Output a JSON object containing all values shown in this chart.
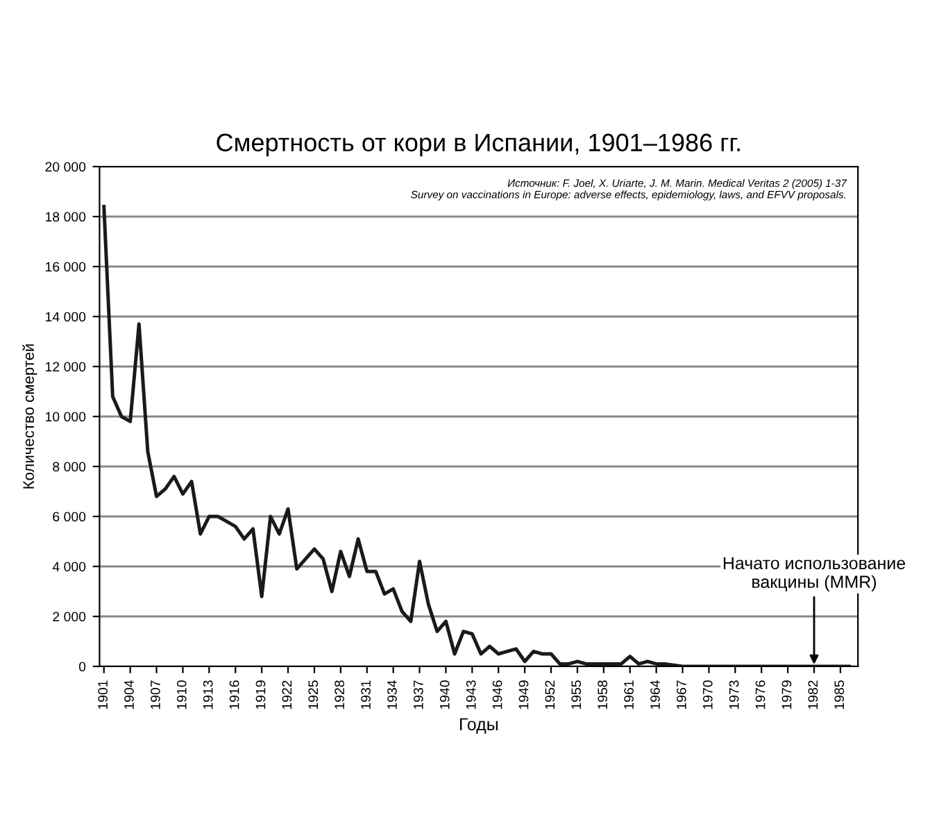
{
  "chart_data": {
    "type": "line",
    "title": "Смертность от кори в Испании, 1901–1986 гг.",
    "xlabel": "Годы",
    "ylabel": "Количество смертей",
    "annotations": [
      "Источник: F. Joel, X. Uriarte, J. M. Marin. Medical Veritas 2 (2005) 1-37\nSurvey on vaccinations in Europe: adverse effects, epidemiology, laws, and EFVV proposals.",
      {
        "text": "Начато использование\nвакцины (MMR)",
        "x": 1982,
        "y": 0
      }
    ],
    "x": [
      1901,
      1902,
      1903,
      1904,
      1905,
      1906,
      1907,
      1908,
      1909,
      1910,
      1911,
      1912,
      1913,
      1914,
      1915,
      1916,
      1917,
      1918,
      1919,
      1920,
      1921,
      1922,
      1923,
      1924,
      1925,
      1926,
      1927,
      1928,
      1929,
      1930,
      1931,
      1932,
      1933,
      1934,
      1935,
      1936,
      1937,
      1938,
      1939,
      1940,
      1941,
      1942,
      1943,
      1944,
      1945,
      1946,
      1947,
      1948,
      1949,
      1950,
      1951,
      1952,
      1953,
      1954,
      1955,
      1956,
      1957,
      1958,
      1959,
      1960,
      1961,
      1962,
      1963,
      1964,
      1965,
      1966,
      1967,
      1968,
      1969,
      1970,
      1971,
      1972,
      1973,
      1974,
      1975,
      1976,
      1977,
      1978,
      1979,
      1980,
      1981,
      1982,
      1983,
      1984,
      1985,
      1986
    ],
    "series": [
      {
        "color": "#1a1a1a",
        "values": [
          18400,
          10800,
          10000,
          9800,
          13700,
          8600,
          6800,
          7100,
          7600,
          6900,
          7400,
          5300,
          6000,
          6000,
          5800,
          5600,
          5100,
          5500,
          2800,
          6000,
          5300,
          6300,
          3900,
          4300,
          4700,
          4300,
          3000,
          4600,
          3600,
          5100,
          3800,
          3800,
          2900,
          3100,
          2200,
          1800,
          4200,
          2500,
          1400,
          1800,
          500,
          1400,
          1300,
          500,
          800,
          500,
          600,
          700,
          200,
          600,
          500,
          500,
          100,
          100,
          200,
          100,
          100,
          100,
          100,
          100,
          400,
          100,
          200,
          100,
          100,
          50,
          0,
          0,
          0,
          0,
          0,
          0,
          0,
          0,
          0,
          0,
          0,
          0,
          0,
          0,
          0,
          0,
          0,
          0,
          0,
          0
        ]
      }
    ],
    "xlim": [
      1900.5,
      1987
    ],
    "xticks": [
      1901,
      1904,
      1907,
      1910,
      1913,
      1916,
      1919,
      1922,
      1925,
      1928,
      1931,
      1934,
      1937,
      1940,
      1943,
      1946,
      1949,
      1952,
      1955,
      1958,
      1961,
      1964,
      1967,
      1970,
      1973,
      1976,
      1979,
      1982,
      1985
    ],
    "ylim": [
      0,
      20000
    ],
    "yticks": [
      {
        "value": 0,
        "label": "0"
      },
      {
        "value": 2000,
        "label": "2 000"
      },
      {
        "value": 4000,
        "label": "4 000"
      },
      {
        "value": 6000,
        "label": "6 000"
      },
      {
        "value": 8000,
        "label": "8 000"
      },
      {
        "value": 10000,
        "label": "10 000"
      },
      {
        "value": 12000,
        "label": "12 000"
      },
      {
        "value": 14000,
        "label": "14 000"
      },
      {
        "value": 16000,
        "label": "16 000"
      },
      {
        "value": 18000,
        "label": "18 000"
      },
      {
        "value": 20000,
        "label": "20 000"
      }
    ],
    "grid": "y",
    "legend": false,
    "marker": "none",
    "line_style": "solid"
  }
}
